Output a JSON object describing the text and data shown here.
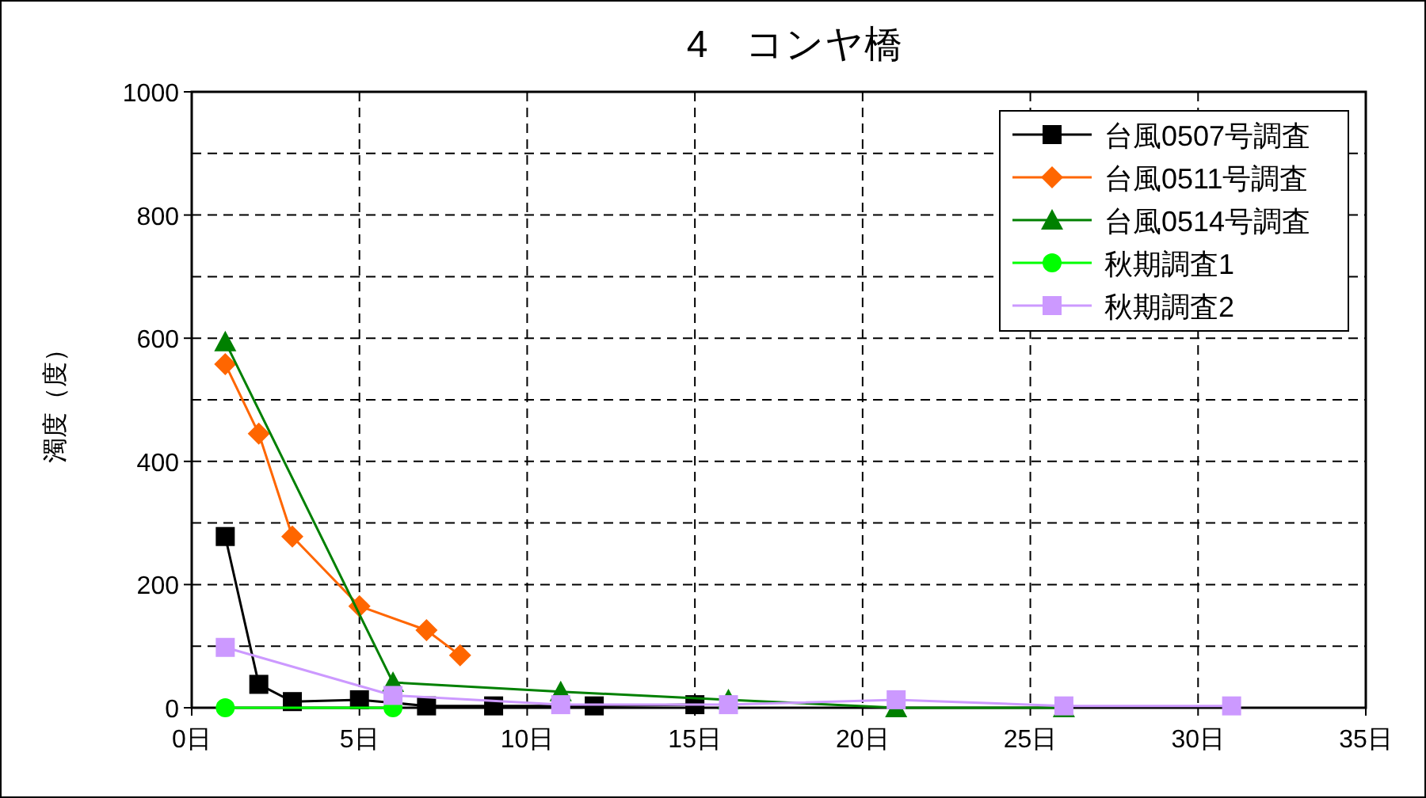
{
  "chart_data": {
    "type": "line",
    "title": "4　コンヤ橋",
    "ylabel": "濁度（度）",
    "xlim": [
      0,
      35
    ],
    "xticks": [
      {
        "value": 0,
        "label": "0日"
      },
      {
        "value": 5,
        "label": "5日"
      },
      {
        "value": 10,
        "label": "10日"
      },
      {
        "value": 15,
        "label": "15日"
      },
      {
        "value": 20,
        "label": "20日"
      },
      {
        "value": 25,
        "label": "25日"
      },
      {
        "value": 30,
        "label": "30日"
      },
      {
        "value": 35,
        "label": "35日"
      }
    ],
    "ylim": [
      0,
      1000
    ],
    "yticks": [
      0,
      200,
      400,
      600,
      800,
      1000
    ],
    "grid": true,
    "legend": "top right",
    "line_style": "solid",
    "series": [
      {
        "name": "台風0507号調査",
        "color": "#000000",
        "marker": "square",
        "x": [
          1,
          2,
          3,
          5,
          7,
          9,
          12,
          15
        ],
        "values": [
          278,
          38,
          10,
          13,
          3,
          3,
          3,
          5
        ]
      },
      {
        "name": "台風0511号調査",
        "color": "#ff6600",
        "marker": "diamond",
        "x": [
          1,
          2,
          3,
          5,
          7,
          8
        ],
        "values": [
          558,
          445,
          278,
          165,
          126,
          85
        ]
      },
      {
        "name": "台風0514号調査",
        "color": "#008000",
        "marker": "triangle",
        "x": [
          1,
          6,
          11,
          16,
          21,
          26
        ],
        "values": [
          594,
          41,
          26,
          13,
          0,
          0
        ]
      },
      {
        "name": "秋期調査1",
        "color": "#00ff00",
        "marker": "circle",
        "x": [
          1,
          6
        ],
        "values": [
          0,
          0
        ]
      },
      {
        "name": "秋期調査2",
        "color": "#cc99ff",
        "marker": "square",
        "x": [
          1,
          6,
          11,
          16,
          21,
          26,
          31
        ],
        "values": [
          98,
          20,
          5,
          5,
          13,
          3,
          3
        ]
      }
    ]
  }
}
